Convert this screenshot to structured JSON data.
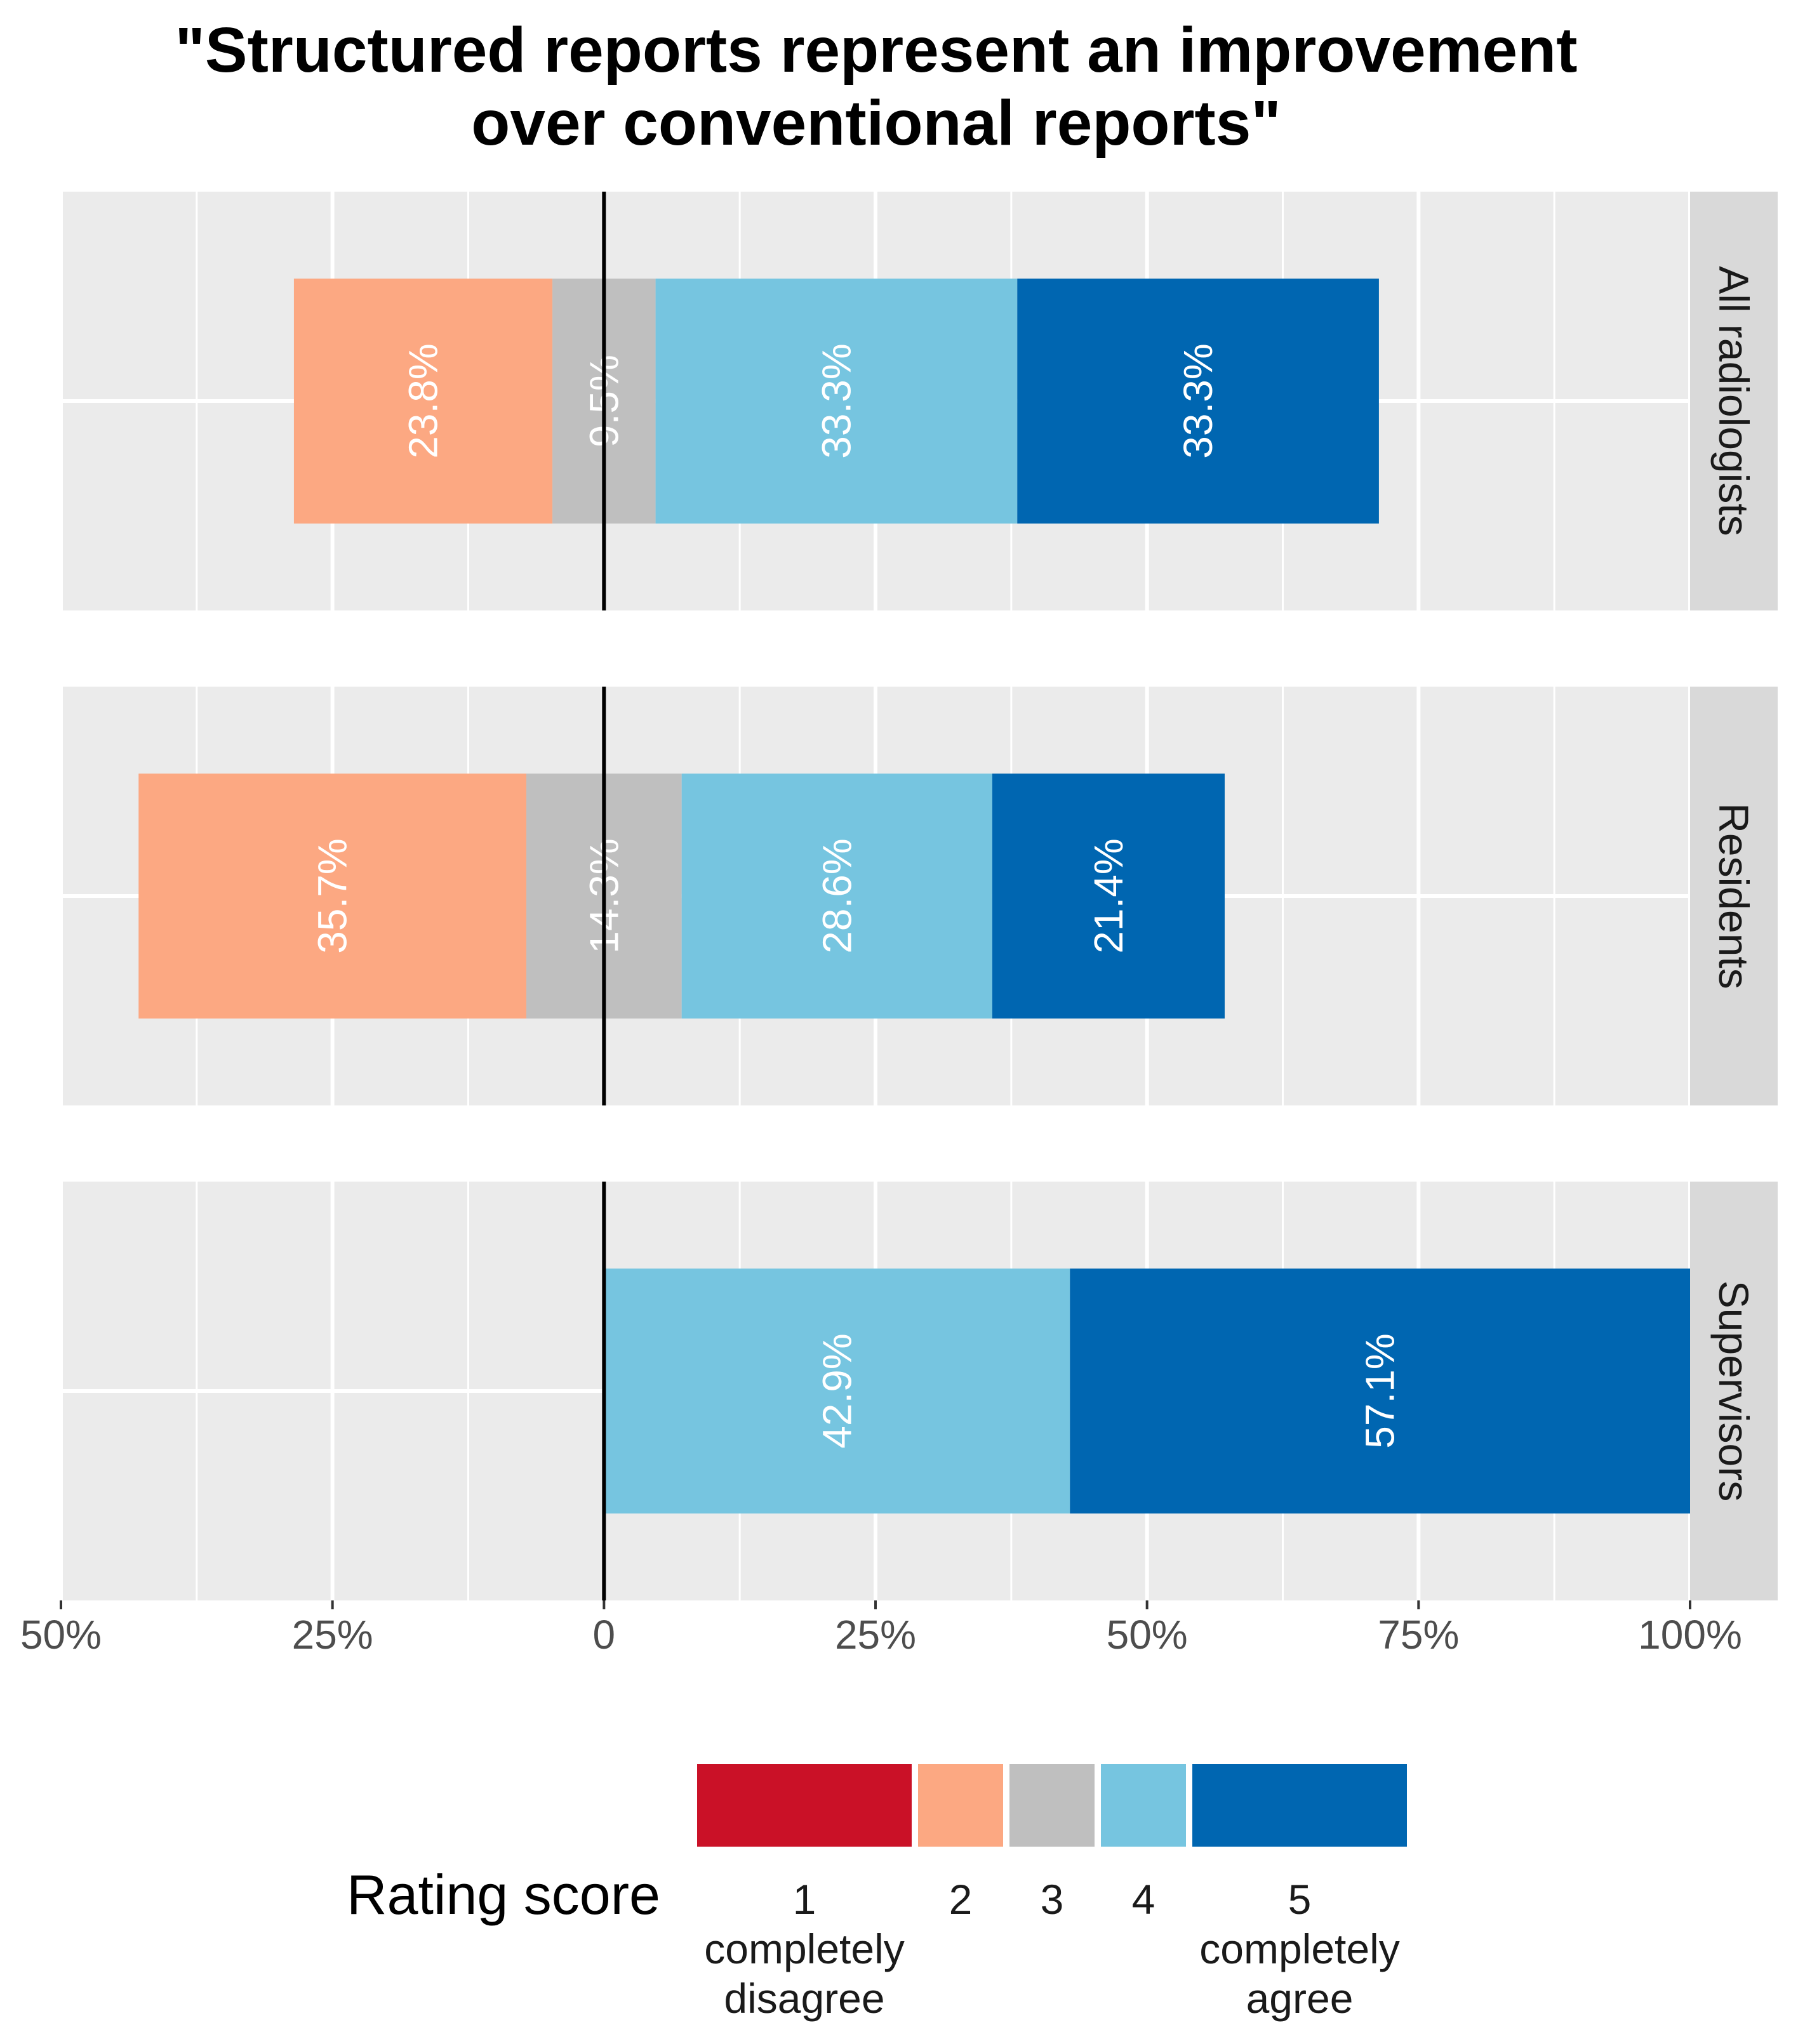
{
  "chart_data": {
    "type": "bar",
    "orientation": "horizontal-diverging-stacked",
    "title_lines": [
      "\"Structured reports represent an improvement",
      "over conventional reports\""
    ],
    "facets": [
      {
        "name": "All radiologists",
        "segments": [
          {
            "score": 2,
            "value": 23.8,
            "label": "23.8%"
          },
          {
            "score": 3,
            "value": 9.5,
            "label": "9.5%"
          },
          {
            "score": 4,
            "value": 33.3,
            "label": "33.3%"
          },
          {
            "score": 5,
            "value": 33.3,
            "label": "33.3%"
          }
        ]
      },
      {
        "name": "Residents",
        "segments": [
          {
            "score": 2,
            "value": 35.7,
            "label": "35.7%"
          },
          {
            "score": 3,
            "value": 14.3,
            "label": "14.3%"
          },
          {
            "score": 4,
            "value": 28.6,
            "label": "28.6%"
          },
          {
            "score": 5,
            "value": 21.4,
            "label": "21.4%"
          }
        ]
      },
      {
        "name": "Supervisors",
        "segments": [
          {
            "score": 4,
            "value": 42.9,
            "label": "42.9%"
          },
          {
            "score": 5,
            "value": 57.1,
            "label": "57.1%"
          }
        ]
      }
    ],
    "xlim": [
      -50,
      100
    ],
    "x_ticks": [
      {
        "value": -50,
        "label": "50%"
      },
      {
        "value": -25,
        "label": "25%"
      },
      {
        "value": 0,
        "label": "0"
      },
      {
        "value": 25,
        "label": "25%"
      },
      {
        "value": 50,
        "label": "50%"
      },
      {
        "value": 75,
        "label": "75%"
      },
      {
        "value": 100,
        "label": "100%"
      }
    ],
    "legend": {
      "title": "Rating score",
      "position": "bottom",
      "items": [
        {
          "score": 1,
          "lines": [
            "1",
            "completely",
            "disagree"
          ],
          "color": "#ca1127"
        },
        {
          "score": 2,
          "lines": [
            "2"
          ],
          "color": "#fca882"
        },
        {
          "score": 3,
          "lines": [
            "3"
          ],
          "color": "#bfbfbf"
        },
        {
          "score": 4,
          "lines": [
            "4"
          ],
          "color": "#76c5e0"
        },
        {
          "score": 5,
          "lines": [
            "5",
            "completely",
            "agree"
          ],
          "color": "#0066b1"
        }
      ]
    },
    "colors": {
      "panel_bg": "#ebebeb",
      "strip_bg": "#d9d9d9",
      "grid": "#ffffff",
      "zero_line": "#000000"
    }
  }
}
